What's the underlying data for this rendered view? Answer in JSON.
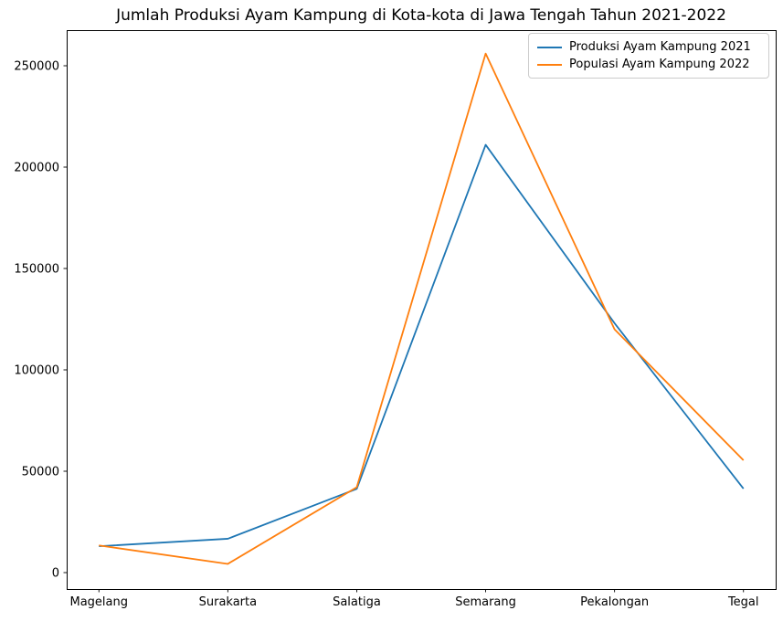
{
  "title": "Jumlah Produksi Ayam Kampung di Kota-kota di Jawa Tengah Tahun 2021-2022",
  "chart_data": {
    "type": "line",
    "title": "Jumlah Produksi Ayam Kampung di Kota-kota di Jawa Tengah Tahun 2021-2022",
    "categories": [
      "Magelang",
      "Surakarta",
      "Salatiga",
      "Semarang",
      "Pekalongan",
      "Tegal"
    ],
    "series": [
      {
        "name": "Produksi Ayam Kampung 2021",
        "color": "#1f77b4",
        "values": [
          13000,
          16700,
          41300,
          211000,
          123000,
          41400
        ]
      },
      {
        "name": "Populasi Ayam Kampung 2022",
        "color": "#ff7f0e",
        "values": [
          13400,
          4300,
          42100,
          256000,
          120000,
          55400
        ]
      }
    ],
    "xlabel": "",
    "ylabel": "",
    "yticks": [
      0,
      50000,
      100000,
      150000,
      200000,
      250000
    ],
    "ylim": [
      -8300,
      268600
    ],
    "xlim": [
      -0.25,
      5.25
    ],
    "grid": false,
    "legend_position": "upper right"
  },
  "colors": {
    "axes": "#000000",
    "text": "#000000",
    "legend_border": "#cccccc",
    "background": "#ffffff"
  }
}
